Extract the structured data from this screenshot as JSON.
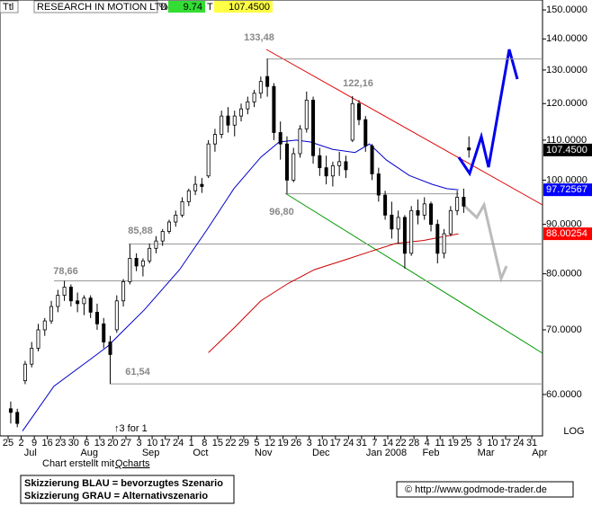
{
  "header": {
    "ttl": "Ttl",
    "name": "RESEARCH IN MOTION LTD",
    "pct_label": "%",
    "pct": 9.74,
    "t_label": "T",
    "last": "107.4500"
  },
  "chart_data": {
    "type": "candlestick",
    "log_scale": true,
    "scale_label": "LOG",
    "ylim": [
      54.6,
      153.6
    ],
    "yticks": [
      {
        "value": 150,
        "label": "150.0000"
      },
      {
        "value": 140,
        "label": "140.0000"
      },
      {
        "value": 130,
        "label": "130.0000"
      },
      {
        "value": 120,
        "label": "120.0000"
      },
      {
        "value": 110,
        "label": "110.0000"
      },
      {
        "value": 100,
        "label": "100.0000"
      },
      {
        "value": 90,
        "label": "90.0000"
      },
      {
        "value": 80,
        "label": "80.0000"
      },
      {
        "value": 70,
        "label": "70.0000"
      },
      {
        "value": 60,
        "label": "60.0000"
      }
    ],
    "xlim": [
      -0.62,
      40.82
    ],
    "xticks": [
      {
        "value": 0,
        "label": "25"
      },
      {
        "value": 1,
        "label": "2"
      },
      {
        "value": 2,
        "label": "9"
      },
      {
        "value": 3,
        "label": "16"
      },
      {
        "value": 4,
        "label": "23"
      },
      {
        "value": 5,
        "label": "30"
      },
      {
        "value": 6,
        "label": "6"
      },
      {
        "value": 7,
        "label": "13"
      },
      {
        "value": 8,
        "label": "20"
      },
      {
        "value": 9,
        "label": "27"
      },
      {
        "value": 10,
        "label": "3"
      },
      {
        "value": 11,
        "label": "10"
      },
      {
        "value": 12,
        "label": "17"
      },
      {
        "value": 13,
        "label": "24"
      },
      {
        "value": 14,
        "label": "1"
      },
      {
        "value": 15,
        "label": "8"
      },
      {
        "value": 16,
        "label": "15"
      },
      {
        "value": 17,
        "label": "22"
      },
      {
        "value": 18,
        "label": "29"
      },
      {
        "value": 19,
        "label": "5"
      },
      {
        "value": 20,
        "label": "12"
      },
      {
        "value": 21,
        "label": "19"
      },
      {
        "value": 22,
        "label": "26"
      },
      {
        "value": 23,
        "label": "3"
      },
      {
        "value": 24,
        "label": "10"
      },
      {
        "value": 25,
        "label": "17"
      },
      {
        "value": 26,
        "label": "24"
      },
      {
        "value": 27,
        "label": "31"
      },
      {
        "value": 28,
        "label": "7"
      },
      {
        "value": 29,
        "label": "14"
      },
      {
        "value": 30,
        "label": "22"
      },
      {
        "value": 31,
        "label": "28"
      },
      {
        "value": 32,
        "label": "4"
      },
      {
        "value": 33,
        "label": "11"
      },
      {
        "value": 34,
        "label": "19"
      },
      {
        "value": 35,
        "label": "25"
      },
      {
        "value": 36,
        "label": "3"
      },
      {
        "value": 37,
        "label": "10"
      },
      {
        "value": 38,
        "label": "17"
      },
      {
        "value": 39,
        "label": "24"
      },
      {
        "value": 40,
        "label": "31"
      }
    ],
    "month_ticks": [
      {
        "value": 1.7,
        "label": "Jul"
      },
      {
        "value": 6.2,
        "label": "Aug"
      },
      {
        "value": 10.9,
        "label": "Sep"
      },
      {
        "value": 14.7,
        "label": "Oct"
      },
      {
        "value": 19.5,
        "label": "Nov"
      },
      {
        "value": 23.9,
        "label": "Dec"
      },
      {
        "value": 28.9,
        "label": "Jan 2008"
      },
      {
        "value": 32.3,
        "label": "Feb"
      },
      {
        "value": 36.5,
        "label": "Mar"
      },
      {
        "value": 40.6,
        "label": "Apr"
      }
    ],
    "x": [
      0.2,
      0.7,
      1.3,
      1.8,
      2.3,
      2.8,
      3.3,
      3.8,
      4.3,
      4.8,
      5.3,
      5.8,
      6.3,
      6.8,
      7.3,
      7.8,
      8.3,
      8.8,
      9.3,
      9.8,
      10.3,
      10.8,
      11.3,
      11.8,
      12.3,
      12.8,
      13.3,
      13.8,
      14.3,
      14.8,
      15.3,
      15.8,
      16.3,
      16.8,
      17.3,
      17.8,
      18.3,
      18.8,
      19.3,
      19.8,
      20.3,
      20.8,
      21.3,
      21.8,
      22.3,
      22.8,
      23.3,
      23.8,
      24.3,
      24.8,
      25.3,
      25.8,
      26.3,
      26.8,
      27.3,
      27.8,
      28.3,
      28.8,
      29.3,
      29.8,
      30.3,
      30.8,
      31.3,
      31.8,
      32.3,
      32.8,
      33.3,
      33.8,
      34.3,
      34.8,
      35.2
    ],
    "open": [
      58,
      57.5,
      62,
      64.5,
      67,
      70,
      71.5,
      74,
      76,
      77.5,
      75,
      74.5,
      75.5,
      73,
      71,
      68,
      70,
      75,
      78.5,
      83,
      81.5,
      82.5,
      85,
      86.5,
      88.5,
      90.5,
      92,
      95,
      97.5,
      99,
      101,
      109,
      111.5,
      116.5,
      114,
      116.5,
      118.5,
      120.5,
      123,
      128,
      125,
      112,
      109,
      100,
      106.5,
      113,
      121,
      106,
      103,
      101,
      103.5,
      104.5,
      110,
      120,
      115.5,
      108.5,
      101.5,
      96.5,
      92,
      89,
      91.5,
      84,
      93,
      92,
      94.5,
      90,
      84,
      88,
      93,
      96,
      108
    ],
    "high": [
      59,
      58,
      65,
      68,
      71,
      72,
      75,
      77,
      78.66,
      78,
      76.5,
      76,
      76,
      74.5,
      72,
      69,
      76,
      79,
      85.88,
      84,
      83,
      86,
      87.5,
      89,
      91,
      93,
      96,
      98,
      101,
      100.5,
      110,
      113,
      118,
      119,
      118,
      120,
      122,
      124,
      128,
      133.48,
      126,
      115,
      111,
      108,
      114,
      123.5,
      122,
      108,
      106,
      104.5,
      107,
      106,
      122.16,
      121,
      116.5,
      109,
      103,
      97.5,
      95,
      93,
      92,
      94,
      95.5,
      96,
      95,
      91,
      89,
      94,
      97.5,
      98,
      111
    ],
    "low": [
      56,
      55.5,
      61.5,
      64,
      66.5,
      69,
      71,
      73,
      75,
      74,
      73,
      72.5,
      72,
      70,
      67,
      61.54,
      69.5,
      74,
      78,
      80.5,
      79.5,
      82,
      84,
      85.5,
      88,
      89.5,
      91.5,
      94,
      96.5,
      97,
      100.5,
      107,
      110.5,
      112,
      111,
      115,
      117,
      119,
      121.5,
      122,
      110,
      105,
      96.8,
      99.5,
      105.5,
      112,
      104,
      101,
      99,
      98.5,
      101,
      100.5,
      109.5,
      114,
      107,
      100,
      95,
      91,
      87,
      86,
      81,
      83.5,
      90,
      91,
      88.5,
      82,
      83,
      87.5,
      92,
      92.5,
      105.5
    ],
    "close": [
      57.5,
      56,
      64.5,
      67,
      70,
      71.5,
      74,
      76,
      77.5,
      75,
      74.5,
      75.5,
      73,
      71,
      68,
      66,
      75,
      78.5,
      83,
      81.5,
      82.5,
      85,
      86.5,
      88.5,
      90.5,
      92,
      95,
      97.5,
      99,
      98.5,
      109,
      111.5,
      116.5,
      114,
      116.5,
      118.5,
      120.5,
      123,
      126.5,
      125,
      112,
      109,
      100,
      106.5,
      113,
      121,
      106,
      103,
      101,
      103.5,
      104.5,
      102.5,
      120,
      115.5,
      108.5,
      101.5,
      96.5,
      92,
      89,
      91.5,
      84,
      93,
      92,
      94.5,
      90,
      84,
      88,
      93,
      96,
      94,
      107.45
    ],
    "close_last_label": "107.4500",
    "series": [
      {
        "name": "MA blue",
        "color": "#0000cc",
        "x": [
          1.1,
          3.5,
          6.25,
          7.6,
          10.4,
          13.1,
          15.2,
          17.25,
          19.3,
          20.7,
          22,
          23.1,
          24.8,
          26.5,
          27.6,
          28.9,
          30.65,
          32.4,
          33.5,
          34.4
        ],
        "values": [
          55,
          61.2,
          65.2,
          67.3,
          73.4,
          80.8,
          88.9,
          98,
          105.6,
          109.5,
          110,
          109.5,
          107.6,
          106.8,
          109,
          104.9,
          101.1,
          99,
          98,
          97.72567
        ],
        "last_label": "97.72567"
      },
      {
        "name": "MA red",
        "color": "#cc0000",
        "x": [
          15.3,
          17.25,
          19.3,
          21.4,
          23.4,
          25.5,
          27.6,
          29.6,
          31.7,
          34.4
        ],
        "values": [
          66.3,
          70.3,
          75,
          78.2,
          80.8,
          82.5,
          84.3,
          86,
          86.6,
          88.00254
        ],
        "last_label": "88.00254"
      }
    ],
    "levels": [
      {
        "value": 133.48,
        "label": "133,48"
      },
      {
        "value": 122.16,
        "label": "122,16"
      },
      {
        "value": 96.8,
        "label": "96,80"
      },
      {
        "value": 85.88,
        "label": "85,88"
      },
      {
        "value": 78.66,
        "label": "78,66"
      },
      {
        "value": 61.54,
        "label": "61,54"
      }
    ],
    "split_note": "↑3 for 1"
  },
  "footer": {
    "credit_prefix": "Chart erstellt mit",
    "credit_tool": "Qcharts",
    "legend": [
      "Skizzierung BLAU = bevorzugtes Szenario",
      "Skizzierung GRAU = Alternativszenario"
    ],
    "source": "© http://www.godmode-trader.de"
  }
}
